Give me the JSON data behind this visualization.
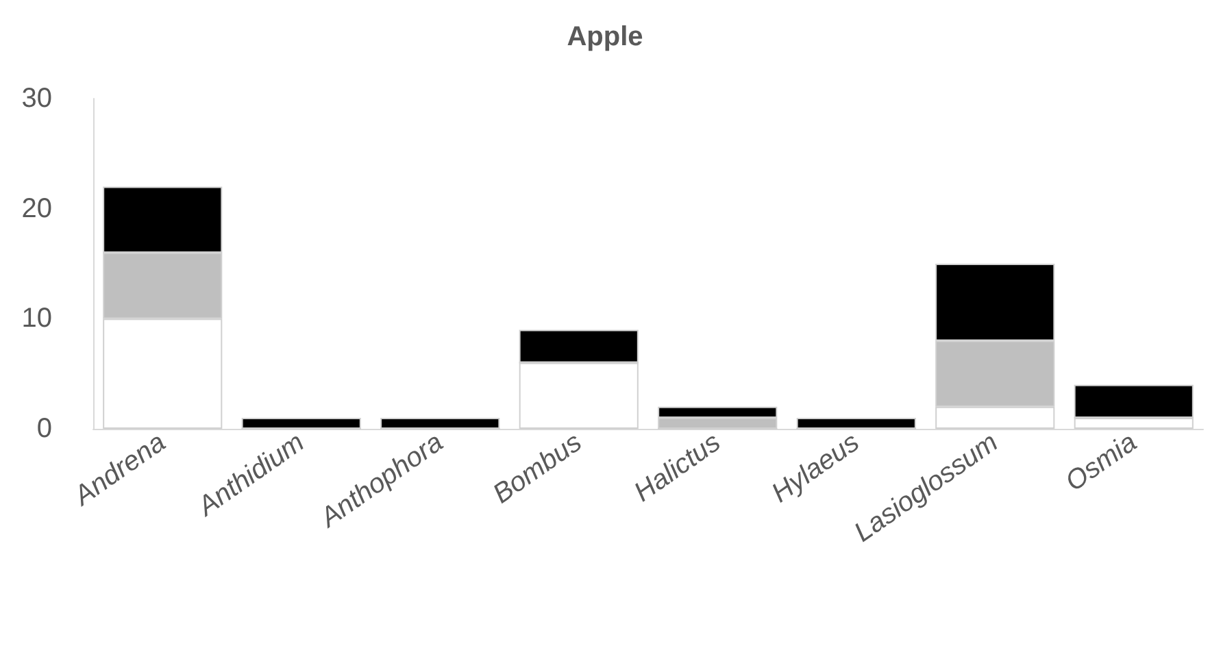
{
  "chart_data": {
    "type": "bar",
    "title": "Apple",
    "stacked": true,
    "categories": [
      "Andrena",
      "Anthidium",
      "Anthophora",
      "Bombus",
      "Halictus",
      "Hylaeus",
      "Lasioglossum",
      "Osmia"
    ],
    "series": [
      {
        "color": "#ffffff",
        "values": [
          10,
          0,
          0,
          6,
          0,
          0,
          2,
          1
        ]
      },
      {
        "color": "#bfbfbf",
        "values": [
          6,
          0,
          0,
          0,
          1,
          0,
          6,
          0
        ]
      },
      {
        "color": "#000000",
        "values": [
          6,
          1,
          1,
          3,
          1,
          1,
          7,
          3
        ]
      }
    ],
    "ylim": [
      0,
      30
    ],
    "yticks": [
      0,
      10,
      20,
      30
    ]
  }
}
